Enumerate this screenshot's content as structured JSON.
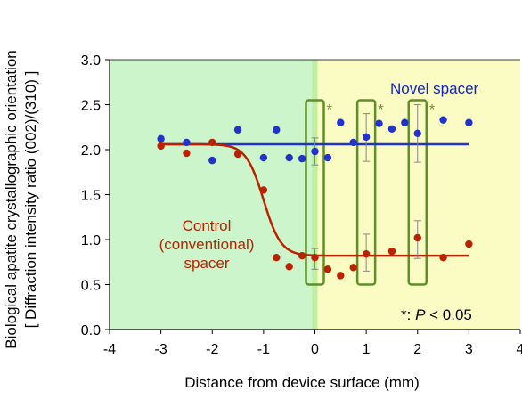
{
  "chart_data": {
    "type": "scatter",
    "xlabel": "Distance from device surface (mm)",
    "ylabel_line1": "Biological apatite crystallographic orientation",
    "ylabel_line2": "[ Diffraction intensity ratio (002)/(310) ]",
    "xlim": [
      -4,
      4
    ],
    "ylim": [
      0,
      3
    ],
    "x_ticks": [
      "-4",
      "-3",
      "-2",
      "-1",
      "0",
      "1",
      "2",
      "3",
      "4"
    ],
    "y_ticks": [
      "0.0",
      "0.5",
      "1.0",
      "1.5",
      "2.0",
      "2.5",
      "3.0"
    ],
    "regions": [
      {
        "from": -4,
        "to": 0,
        "color": "#ccf5cc"
      },
      {
        "from": 0,
        "to": 4,
        "color": "#fbfbc4"
      }
    ],
    "series": [
      {
        "name": "Novel spacer",
        "color": "#2233cc",
        "points": [
          {
            "x": -3.0,
            "y": 2.12
          },
          {
            "x": -2.5,
            "y": 2.08
          },
          {
            "x": -2.0,
            "y": 1.88
          },
          {
            "x": -1.5,
            "y": 2.22
          },
          {
            "x": -1.0,
            "y": 1.91
          },
          {
            "x": -0.75,
            "y": 2.22
          },
          {
            "x": -0.5,
            "y": 1.91
          },
          {
            "x": -0.25,
            "y": 1.9
          },
          {
            "x": 0.0,
            "y": 1.98
          },
          {
            "x": 0.25,
            "y": 1.91
          },
          {
            "x": 0.5,
            "y": 2.3
          },
          {
            "x": 0.75,
            "y": 2.08
          },
          {
            "x": 1.0,
            "y": 2.14
          },
          {
            "x": 1.25,
            "y": 2.29
          },
          {
            "x": 1.5,
            "y": 2.23
          },
          {
            "x": 1.75,
            "y": 2.3
          },
          {
            "x": 2.0,
            "y": 2.18
          },
          {
            "x": 2.5,
            "y": 2.33
          },
          {
            "x": 3.0,
            "y": 2.3
          }
        ],
        "error_bars": [
          {
            "x": 0.0,
            "low": 1.83,
            "high": 2.13
          },
          {
            "x": 1.0,
            "low": 1.87,
            "high": 2.4
          },
          {
            "x": 2.0,
            "low": 1.86,
            "high": 2.5
          }
        ],
        "fit": {
          "type": "constant",
          "y": 2.06
        }
      },
      {
        "name": "Control (conventional) spacer",
        "color": "#bb2200",
        "points": [
          {
            "x": -3.0,
            "y": 2.04
          },
          {
            "x": -2.5,
            "y": 1.96
          },
          {
            "x": -2.0,
            "y": 2.08
          },
          {
            "x": -1.5,
            "y": 1.95
          },
          {
            "x": -1.0,
            "y": 1.55
          },
          {
            "x": -0.75,
            "y": 0.8
          },
          {
            "x": -0.5,
            "y": 0.7
          },
          {
            "x": -0.25,
            "y": 0.82
          },
          {
            "x": 0.0,
            "y": 0.8
          },
          {
            "x": 0.25,
            "y": 0.67
          },
          {
            "x": 0.5,
            "y": 0.6
          },
          {
            "x": 0.75,
            "y": 0.69
          },
          {
            "x": 1.0,
            "y": 0.84
          },
          {
            "x": 1.5,
            "y": 0.87
          },
          {
            "x": 2.0,
            "y": 1.02
          },
          {
            "x": 2.5,
            "y": 0.8
          },
          {
            "x": 3.0,
            "y": 0.95
          }
        ],
        "error_bars": [
          {
            "x": 0.0,
            "low": 0.67,
            "high": 0.9
          },
          {
            "x": 1.0,
            "low": 0.65,
            "high": 1.06
          },
          {
            "x": 2.0,
            "low": 0.79,
            "high": 1.21
          }
        ],
        "fit": {
          "type": "sigmoid",
          "upper": 2.06,
          "lower": 0.82,
          "center": -1.0,
          "scale": 0.17,
          "x_from": -3.0,
          "x_to": 3.0
        }
      }
    ],
    "significance_boxes": [
      {
        "x": 0.0,
        "y_low": 0.5,
        "y_high": 2.55,
        "marker": "*"
      },
      {
        "x": 1.0,
        "y_low": 0.5,
        "y_high": 2.55,
        "marker": "*"
      },
      {
        "x": 2.0,
        "y_low": 0.5,
        "y_high": 2.55,
        "marker": "*"
      }
    ],
    "annotations": {
      "novel_label": "Novel spacer",
      "control_label_lines": [
        "Control",
        "(conventional)",
        "spacer"
      ],
      "significance_prefix": "*: ",
      "significance_p": "P",
      "significance_suffix": " < 0.05"
    }
  }
}
